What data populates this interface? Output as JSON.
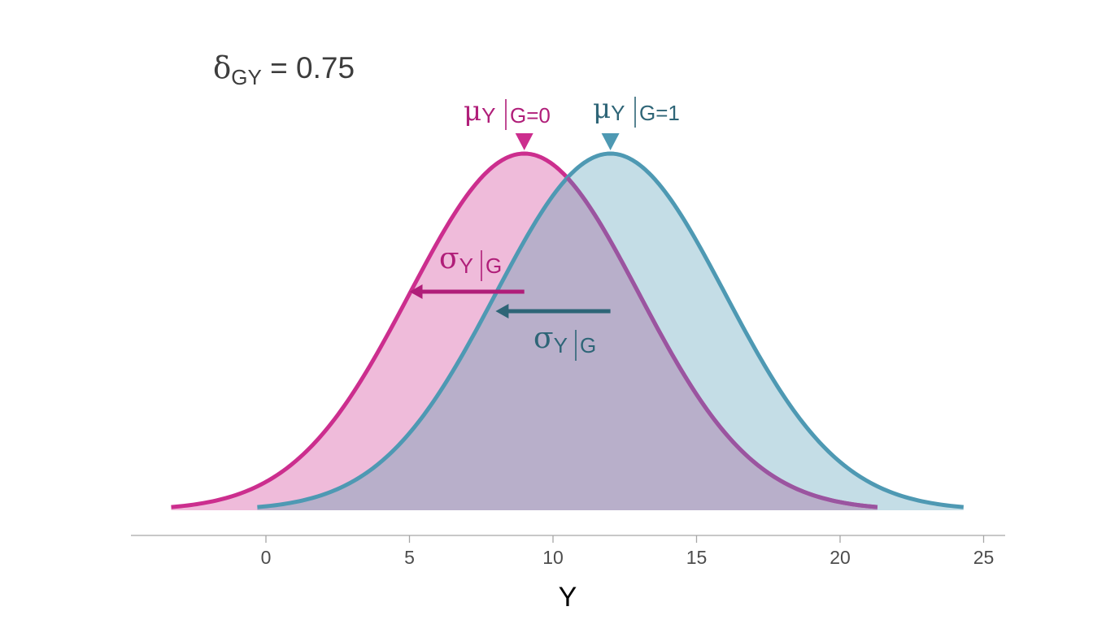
{
  "chart_data": {
    "type": "area",
    "title": "",
    "xlabel": "Y",
    "ylabel": "",
    "xlim": [
      -4.6,
      25.7
    ],
    "xticks": [
      "0",
      "5",
      "10",
      "15",
      "20",
      "25"
    ],
    "xtick_values": [
      0,
      5,
      10,
      15,
      20,
      25
    ],
    "grid": false,
    "legend": "none",
    "series": [
      {
        "key": "g0",
        "mean": 9,
        "sd": 4,
        "x_range": [
          -3.3,
          21.3
        ]
      },
      {
        "key": "g1",
        "mean": 12,
        "sd": 4,
        "x_range": [
          -0.3,
          24.3
        ]
      }
    ],
    "annotations": {
      "delta": {
        "symbol": "δ",
        "subscript": "GY",
        "text": " = 0.75"
      },
      "mu0": {
        "symbol": "μ",
        "subscript": "Y",
        "condition": "G=0"
      },
      "mu1": {
        "symbol": "μ",
        "subscript": "Y",
        "condition": "G=1"
      },
      "sigma0": {
        "symbol": "σ",
        "subscript": "Y",
        "condition": "G"
      },
      "sigma1": {
        "symbol": "σ",
        "subscript": "Y",
        "condition": "G"
      }
    }
  },
  "colors": {
    "g0_line": "#CC2E8E",
    "g0_fill": "#EFBBDA",
    "g1_line": "#4E99B3",
    "g1_fill": "#C4DDE6",
    "overlap_fill": "#B8AFCA",
    "overlap_line_g0": "#9A55A0",
    "sigma0_arrow": "#B01E79",
    "sigma1_arrow": "#2E6577",
    "mu0_label": "#B01E79",
    "mu1_label": "#2E6577",
    "sigma0_label": "#B01E79",
    "sigma1_label": "#2E6577",
    "axis": "#A6A6A6",
    "text": "#3D3D3D"
  }
}
